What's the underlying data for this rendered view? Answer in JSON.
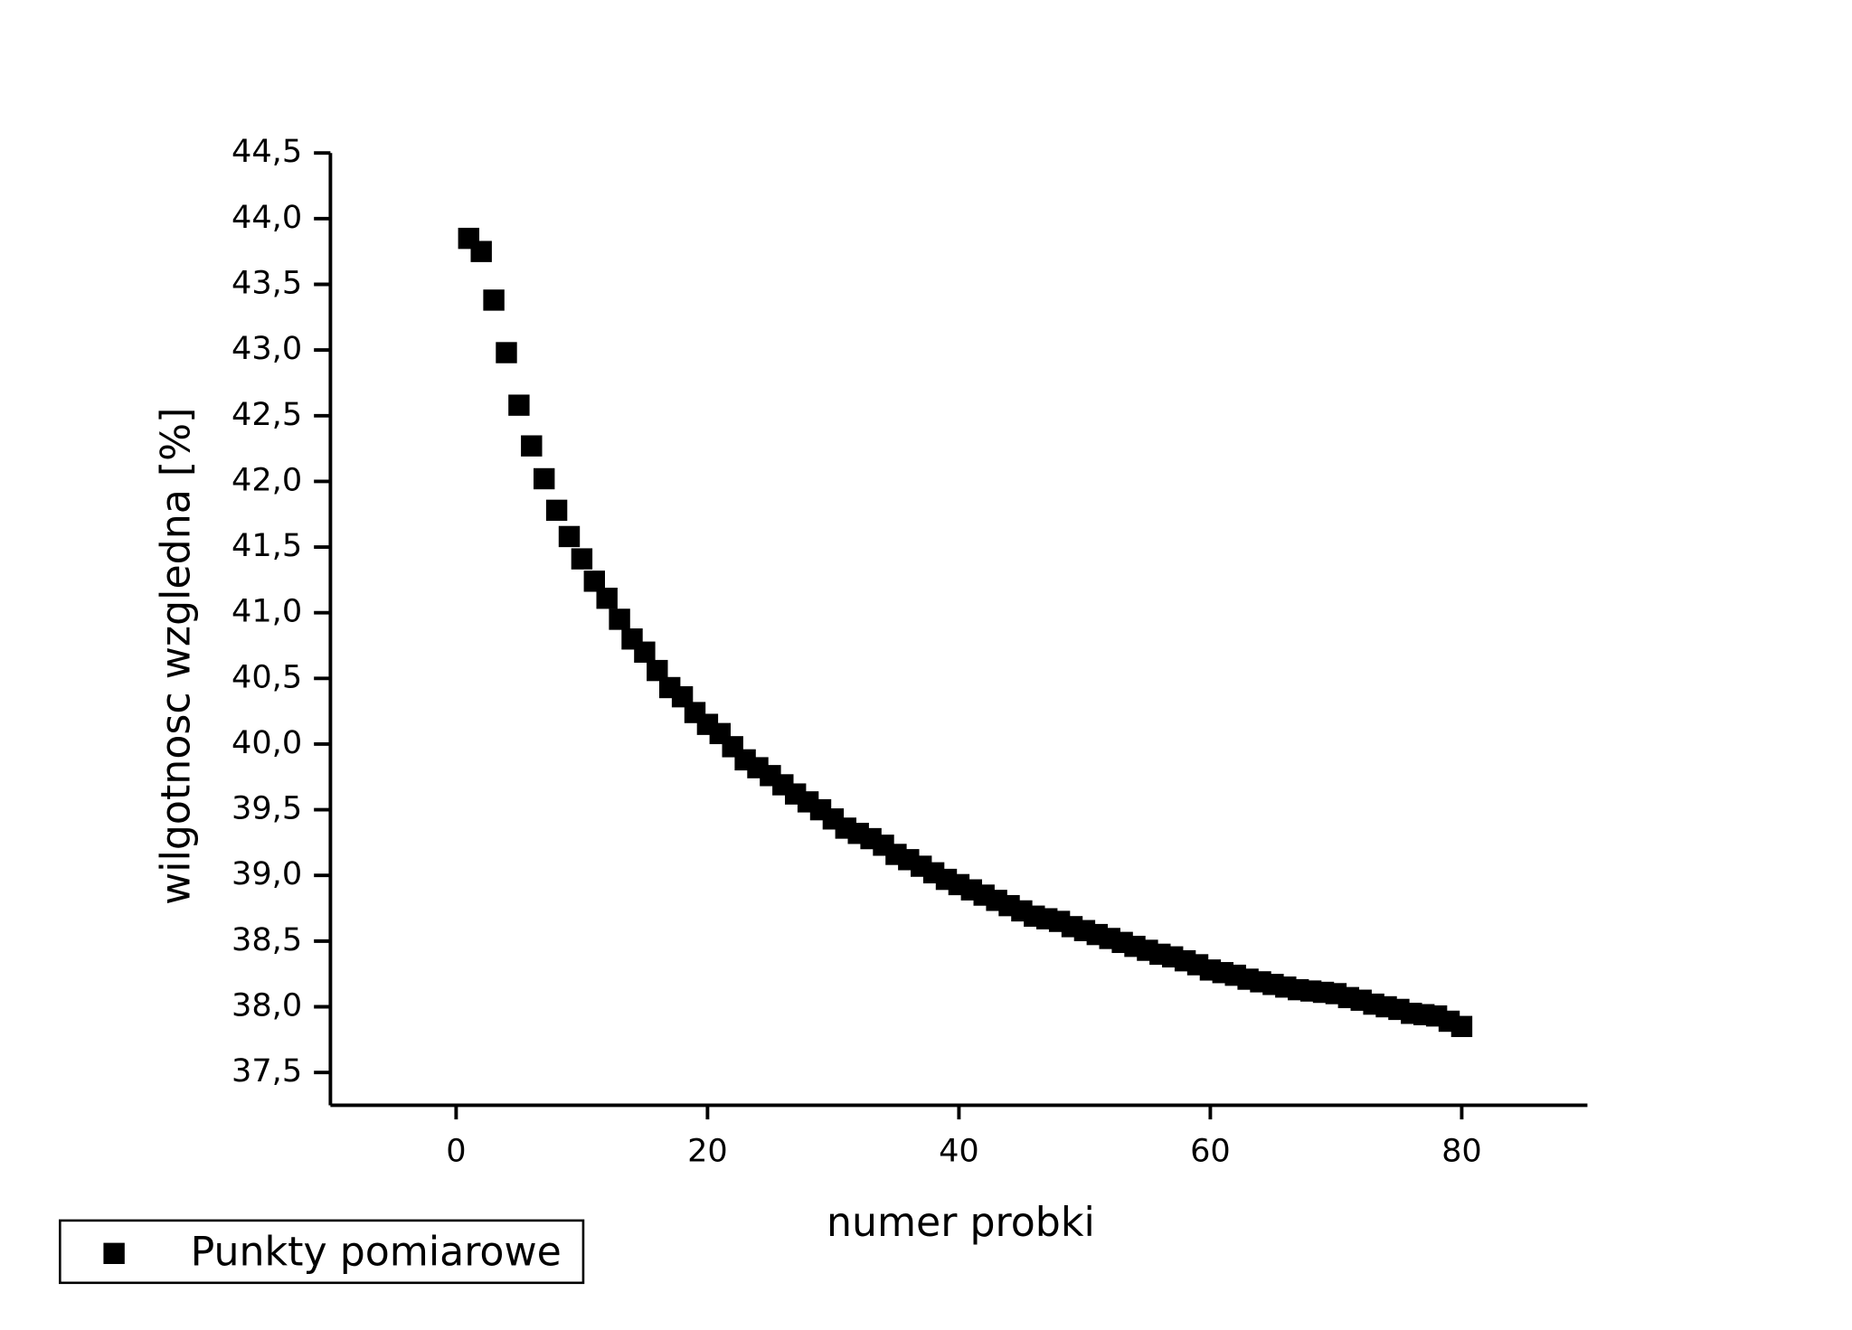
{
  "chart_data": {
    "type": "scatter",
    "xlabel": "numer probki",
    "ylabel": "wilgotnosc wzgledna [%]",
    "xlim": [
      -10,
      90
    ],
    "ylim": [
      37.25,
      44.5
    ],
    "xticks": [
      0,
      20,
      40,
      60,
      80
    ],
    "yticks": [
      {
        "value": 37.5,
        "label": "37,5"
      },
      {
        "value": 38,
        "label": "38,0"
      },
      {
        "value": 38.5,
        "label": "38,5"
      },
      {
        "value": 39,
        "label": "39,0"
      },
      {
        "value": 39.5,
        "label": "39,5"
      },
      {
        "value": 40,
        "label": "40,0"
      },
      {
        "value": 40.5,
        "label": "40,5"
      },
      {
        "value": 41,
        "label": "41,0"
      },
      {
        "value": 41.5,
        "label": "41,5"
      },
      {
        "value": 42,
        "label": "42,0"
      },
      {
        "value": 42.5,
        "label": "42,5"
      },
      {
        "value": 43,
        "label": "43,0"
      },
      {
        "value": 43.5,
        "label": "43,5"
      },
      {
        "value": 44,
        "label": "44,0"
      },
      {
        "value": 44.5,
        "label": "44,5"
      }
    ],
    "legend": "bottom-left",
    "series": [
      {
        "name": "Punkty pomiarowe",
        "color": "#000000",
        "x": [
          1,
          2,
          3,
          4,
          5,
          6,
          7,
          8,
          9,
          10,
          11,
          12,
          13,
          14,
          15,
          16,
          17,
          18,
          19,
          20,
          21,
          22,
          23,
          24,
          25,
          26,
          27,
          28,
          29,
          30,
          31,
          32,
          33,
          34,
          35,
          36,
          37,
          38,
          39,
          40,
          41,
          42,
          43,
          44,
          45,
          46,
          47,
          48,
          49,
          50,
          51,
          52,
          53,
          54,
          55,
          56,
          57,
          58,
          59,
          60,
          61,
          62,
          63,
          64,
          65,
          66,
          67,
          68,
          69,
          70,
          71,
          72,
          73,
          74,
          75,
          76,
          77,
          78,
          79,
          80
        ],
        "values": [
          43.85,
          43.75,
          43.38,
          42.98,
          42.58,
          42.27,
          42.02,
          41.78,
          41.58,
          41.41,
          41.24,
          41.11,
          40.95,
          40.8,
          40.7,
          40.56,
          40.43,
          40.36,
          40.24,
          40.15,
          40.08,
          39.98,
          39.88,
          39.82,
          39.76,
          39.69,
          39.62,
          39.56,
          39.5,
          39.43,
          39.36,
          39.32,
          39.28,
          39.23,
          39.16,
          39.12,
          39.07,
          39.02,
          38.97,
          38.93,
          38.89,
          38.85,
          38.81,
          38.77,
          38.73,
          38.69,
          38.67,
          38.65,
          38.61,
          38.58,
          38.55,
          38.52,
          38.49,
          38.46,
          38.43,
          38.4,
          38.38,
          38.35,
          38.32,
          38.28,
          38.26,
          38.24,
          38.21,
          38.19,
          38.17,
          38.15,
          38.13,
          38.12,
          38.11,
          38.1,
          38.07,
          38.05,
          38.02,
          38.0,
          37.98,
          37.95,
          37.94,
          37.93,
          37.89,
          37.85
        ]
      }
    ]
  }
}
